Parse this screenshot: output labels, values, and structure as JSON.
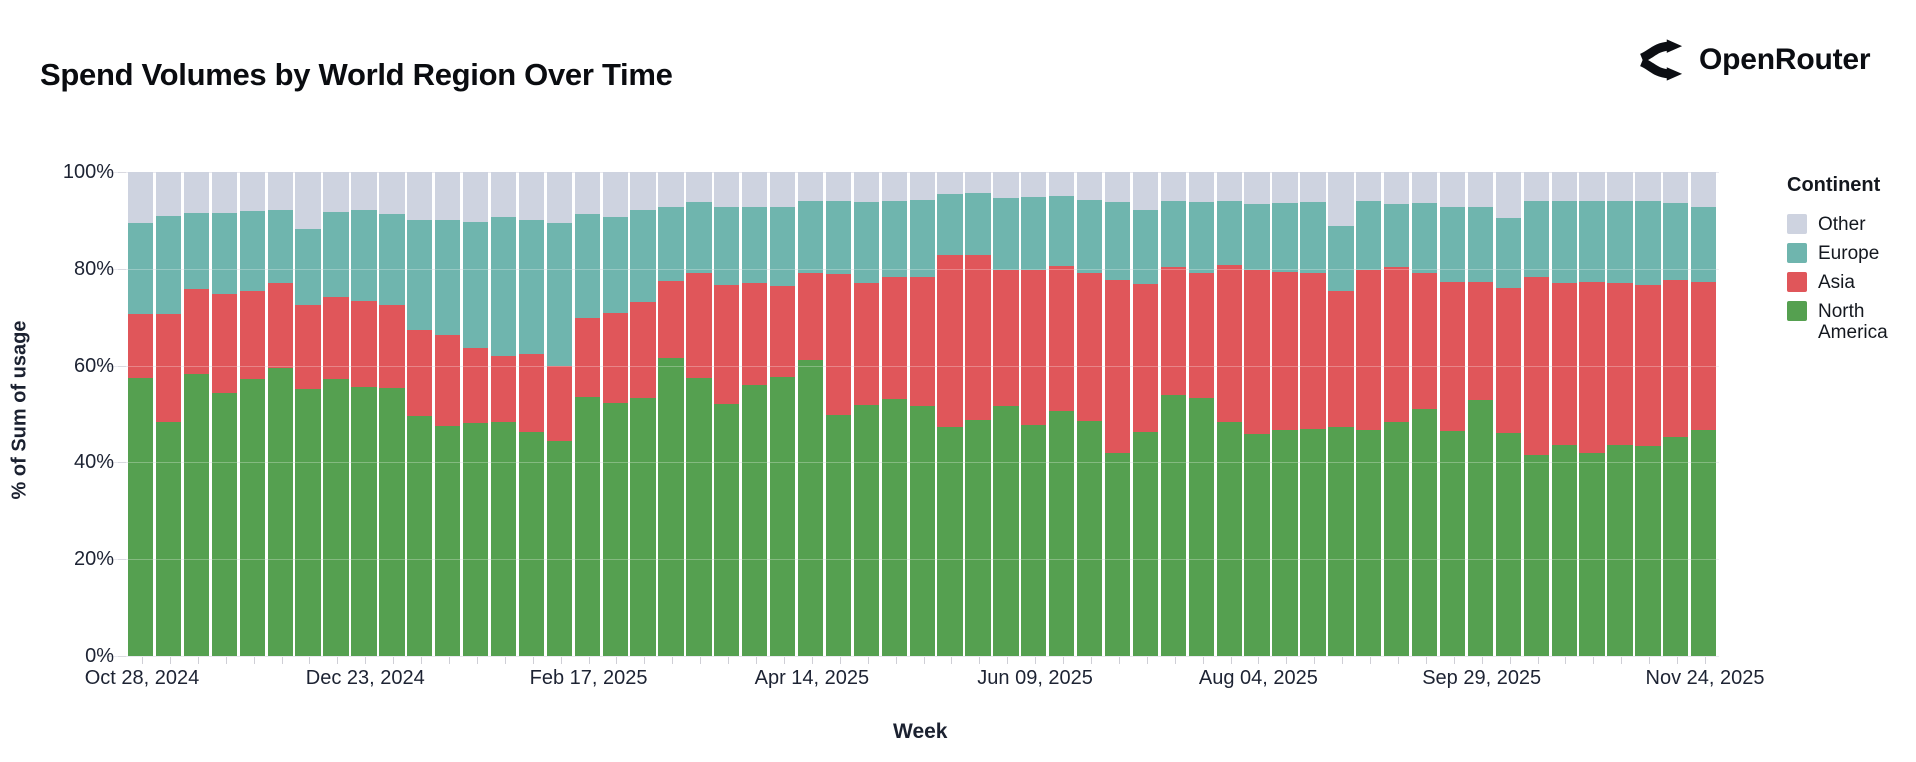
{
  "header": {
    "title": "Spend Volumes by World Region Over Time",
    "brand": "OpenRouter"
  },
  "chart_data": {
    "type": "bar",
    "stacked": true,
    "title": "Spend Volumes by World Region Over Time",
    "xlabel": "Week",
    "ylabel": "% of Sum of usage",
    "ylim": [
      0,
      100
    ],
    "bar_count": 57,
    "y_tick_values": [
      0,
      20,
      40,
      60,
      80,
      100
    ],
    "y_tick_labels": [
      "0%",
      "20%",
      "40%",
      "60%",
      "80%",
      "100%"
    ],
    "x_tick_indices": [
      0,
      8,
      16,
      24,
      32,
      40,
      48,
      56
    ],
    "x_tick_labels": [
      "Oct 28, 2024",
      "Dec 23, 2024",
      "Feb 17, 2025",
      "Apr 14, 2025",
      "Jun 09, 2025",
      "Aug 04, 2025",
      "Sep 29, 2025",
      "Nov 24, 2025"
    ],
    "legend": {
      "title": "Continent",
      "position": "right",
      "entries": [
        {
          "label": "Other",
          "color": "#ced3e0"
        },
        {
          "label": "Europe",
          "color": "#6fb5ae"
        },
        {
          "label": "Asia",
          "color": "#e0565a"
        },
        {
          "label": "North America",
          "color": "#55a050"
        }
      ]
    },
    "stack_order_bottom_to_top": [
      "North America",
      "Asia",
      "Europe",
      "Other"
    ],
    "series": [
      {
        "name": "North America",
        "color": "#55a050",
        "values": [
          57.4,
          48.3,
          58.3,
          54.3,
          57.3,
          59.6,
          55.2,
          57.3,
          55.6,
          55.4,
          49.5,
          47.6,
          48.1,
          48.4,
          46.3,
          44.5,
          53.5,
          52.3,
          53.3,
          61.6,
          57.5,
          52.0,
          56.0,
          57.6,
          61.1,
          49.7,
          51.9,
          53.1,
          51.6,
          47.4,
          48.8,
          51.6,
          47.8,
          50.7,
          48.6,
          41.9,
          46.2,
          54.0,
          53.3,
          48.3,
          45.9,
          46.6,
          46.8,
          47.4,
          46.7,
          48.4,
          51.1,
          46.5,
          52.9,
          46.0,
          41.5,
          43.5,
          41.9,
          43.5,
          43.3,
          45.3,
          46.6
        ]
      },
      {
        "name": "Asia",
        "color": "#e0565a",
        "values": [
          13.3,
          22.4,
          17.5,
          20.4,
          18.1,
          17.5,
          17.3,
          16.9,
          17.8,
          17.2,
          17.8,
          18.8,
          15.6,
          13.5,
          16.0,
          15.4,
          16.4,
          18.6,
          19.9,
          15.9,
          21.7,
          24.6,
          21.1,
          18.8,
          18.0,
          29.2,
          25.1,
          25.2,
          26.7,
          35.4,
          34.0,
          28.1,
          31.9,
          29.8,
          30.5,
          35.7,
          30.6,
          26.3,
          25.8,
          32.4,
          33.8,
          32.8,
          32.3,
          28.0,
          33.0,
          32.0,
          28.0,
          30.8,
          24.4,
          30.1,
          36.8,
          33.6,
          35.4,
          33.6,
          33.3,
          32.3,
          30.7
        ]
      },
      {
        "name": "Europe",
        "color": "#6fb5ae",
        "values": [
          18.8,
          20.3,
          15.8,
          16.9,
          16.5,
          15.0,
          15.7,
          17.6,
          18.7,
          18.7,
          22.8,
          23.7,
          26.0,
          28.9,
          27.8,
          29.5,
          21.4,
          19.9,
          19.0,
          15.2,
          14.7,
          16.2,
          15.7,
          16.3,
          15.0,
          15.1,
          16.9,
          15.7,
          15.9,
          12.6,
          12.8,
          15.0,
          15.2,
          14.5,
          15.2,
          16.3,
          15.4,
          13.7,
          14.8,
          13.4,
          13.7,
          14.2,
          14.8,
          13.4,
          14.3,
          13.0,
          14.5,
          15.5,
          15.4,
          14.3,
          15.8,
          17.0,
          16.8,
          16.9,
          17.4,
          16.0,
          15.4
        ]
      },
      {
        "name": "Other",
        "color": "#ced3e0",
        "values": [
          10.5,
          9.0,
          8.4,
          8.4,
          8.1,
          7.9,
          11.8,
          8.2,
          7.9,
          8.7,
          9.9,
          9.9,
          10.3,
          9.2,
          9.9,
          10.6,
          8.7,
          9.2,
          7.8,
          7.3,
          6.1,
          7.2,
          7.2,
          7.3,
          5.9,
          6.0,
          6.1,
          6.0,
          5.8,
          4.6,
          4.4,
          5.3,
          5.1,
          5.0,
          5.7,
          6.1,
          7.8,
          6.0,
          6.1,
          5.9,
          6.6,
          6.4,
          6.1,
          11.2,
          6.0,
          6.6,
          6.4,
          7.2,
          7.3,
          9.6,
          5.9,
          5.9,
          5.9,
          6.0,
          6.0,
          6.4,
          7.3
        ]
      }
    ]
  }
}
